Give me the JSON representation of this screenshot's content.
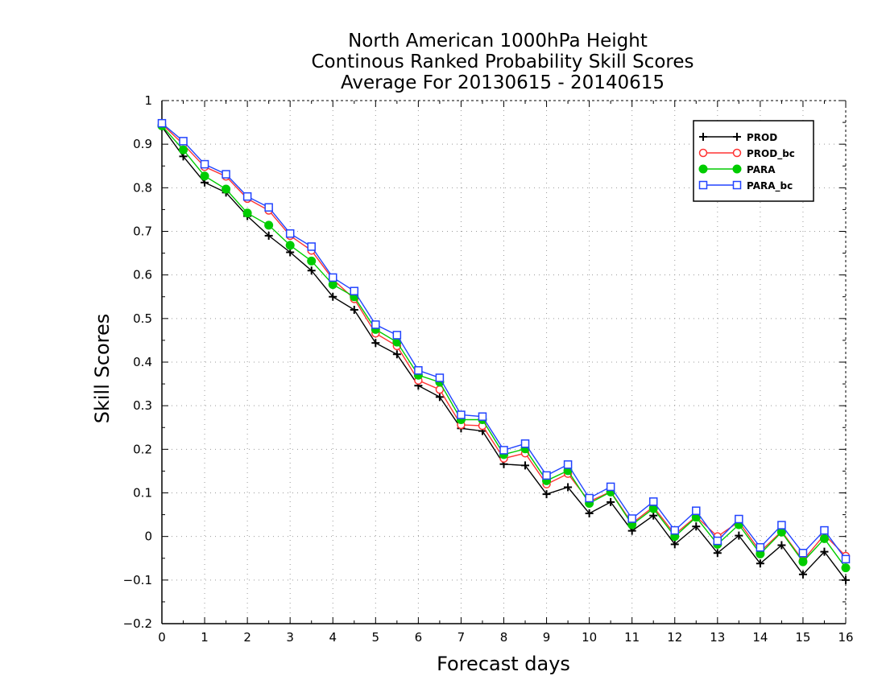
{
  "chart_data": {
    "type": "line",
    "title": [
      "North American 1000hPa Height",
      "Continous Ranked Probability Skill Scores",
      "Average For 20130615 - 20140615"
    ],
    "xlabel": "Forecast days",
    "ylabel": "Skill Scores",
    "xlim": [
      0,
      16
    ],
    "ylim": [
      -0.2,
      1
    ],
    "xticks": [
      0,
      1,
      2,
      3,
      4,
      5,
      6,
      7,
      8,
      9,
      10,
      11,
      12,
      13,
      14,
      15,
      16
    ],
    "xtick_labels": [
      "0",
      "1",
      "2",
      "3",
      "4",
      "5",
      "6",
      "7",
      "8",
      "9",
      "10",
      "11",
      "12",
      "13",
      "14",
      "15",
      "16"
    ],
    "yticks": [
      -0.2,
      -0.1,
      0,
      0.1,
      0.2,
      0.3,
      0.4,
      0.5,
      0.6,
      0.7,
      0.8,
      0.9,
      1
    ],
    "ytick_labels": [
      "−0.2",
      "−0.1",
      "0",
      "0.1",
      "0.2",
      "0.3",
      "0.4",
      "0.5",
      "0.6",
      "0.7",
      "0.8",
      "0.9",
      "1"
    ],
    "grid": true,
    "legend_position": "top-right",
    "x": [
      0,
      0.5,
      1,
      1.5,
      2,
      2.5,
      3,
      3.5,
      4,
      4.5,
      5,
      5.5,
      6,
      6.5,
      7,
      7.5,
      8,
      8.5,
      9,
      9.5,
      10,
      10.5,
      11,
      11.5,
      12,
      12.5,
      13,
      13.5,
      14,
      14.5,
      15,
      15.5,
      16
    ],
    "series": [
      {
        "name": "PROD",
        "color": "#000000",
        "marker": "plus",
        "values": [
          0.94,
          0.872,
          0.812,
          0.789,
          0.735,
          0.69,
          0.652,
          0.61,
          0.55,
          0.52,
          0.444,
          0.418,
          0.346,
          0.32,
          0.248,
          0.242,
          0.166,
          0.163,
          0.097,
          0.113,
          0.053,
          0.079,
          0.013,
          0.048,
          -0.018,
          0.023,
          -0.038,
          0.002,
          -0.062,
          -0.02,
          -0.087,
          -0.035,
          -0.1
        ]
      },
      {
        "name": "PROD_bc",
        "color": "#ff3333",
        "marker": "circle-open",
        "values": [
          0.946,
          0.9,
          0.848,
          0.826,
          0.775,
          0.748,
          0.69,
          0.656,
          0.59,
          0.545,
          0.466,
          0.437,
          0.358,
          0.337,
          0.256,
          0.254,
          0.179,
          0.191,
          0.12,
          0.144,
          0.08,
          0.103,
          0.03,
          0.068,
          0.005,
          0.046,
          0.0,
          0.034,
          -0.035,
          0.012,
          -0.055,
          0.004,
          -0.045
        ]
      },
      {
        "name": "PARA",
        "color": "#00cc00",
        "marker": "circle-filled",
        "values": [
          0.942,
          0.887,
          0.827,
          0.797,
          0.742,
          0.714,
          0.668,
          0.632,
          0.578,
          0.55,
          0.475,
          0.446,
          0.37,
          0.354,
          0.268,
          0.268,
          0.188,
          0.201,
          0.128,
          0.151,
          0.076,
          0.102,
          0.027,
          0.064,
          0.0,
          0.044,
          -0.018,
          0.027,
          -0.04,
          0.01,
          -0.058,
          -0.005,
          -0.072
        ]
      },
      {
        "name": "PARA_bc",
        "color": "#2244ff",
        "marker": "square-open",
        "values": [
          0.948,
          0.907,
          0.854,
          0.831,
          0.78,
          0.755,
          0.695,
          0.665,
          0.594,
          0.563,
          0.486,
          0.462,
          0.381,
          0.364,
          0.279,
          0.275,
          0.198,
          0.213,
          0.14,
          0.165,
          0.088,
          0.114,
          0.041,
          0.08,
          0.014,
          0.059,
          -0.01,
          0.04,
          -0.025,
          0.026,
          -0.038,
          0.014,
          -0.052
        ]
      }
    ]
  }
}
